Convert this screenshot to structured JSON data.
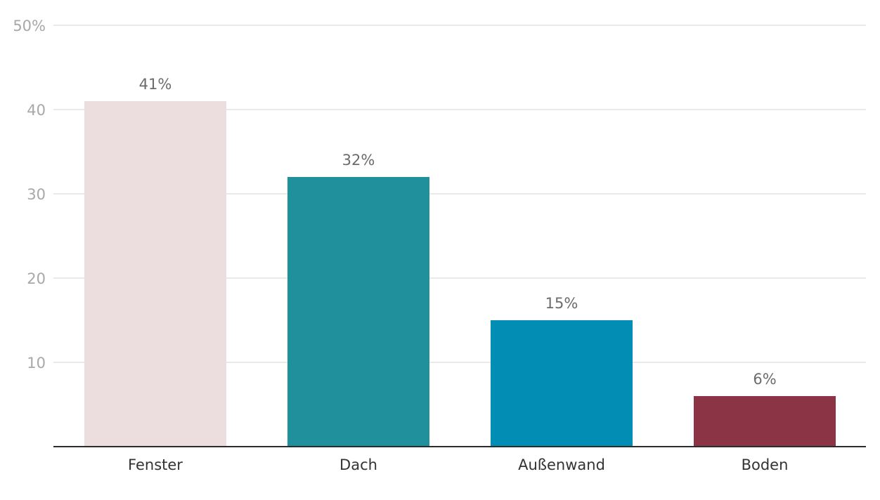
{
  "chart_data": {
    "type": "bar",
    "categories": [
      "Fenster",
      "Dach",
      "Außenwand",
      "Boden"
    ],
    "values": [
      41,
      32,
      15,
      6
    ],
    "data_labels": [
      "41%",
      "32%",
      "15%",
      "6%"
    ],
    "colors": [
      "#ecdddf",
      "#21909d",
      "#018db4",
      "#8b3446"
    ],
    "ylim": [
      0,
      50
    ],
    "yticks": [
      10,
      20,
      30,
      40,
      50
    ],
    "ytick_labels": [
      "10",
      "20",
      "30",
      "40",
      "50%"
    ],
    "grid": true,
    "title": "",
    "xlabel": "",
    "ylabel": ""
  }
}
